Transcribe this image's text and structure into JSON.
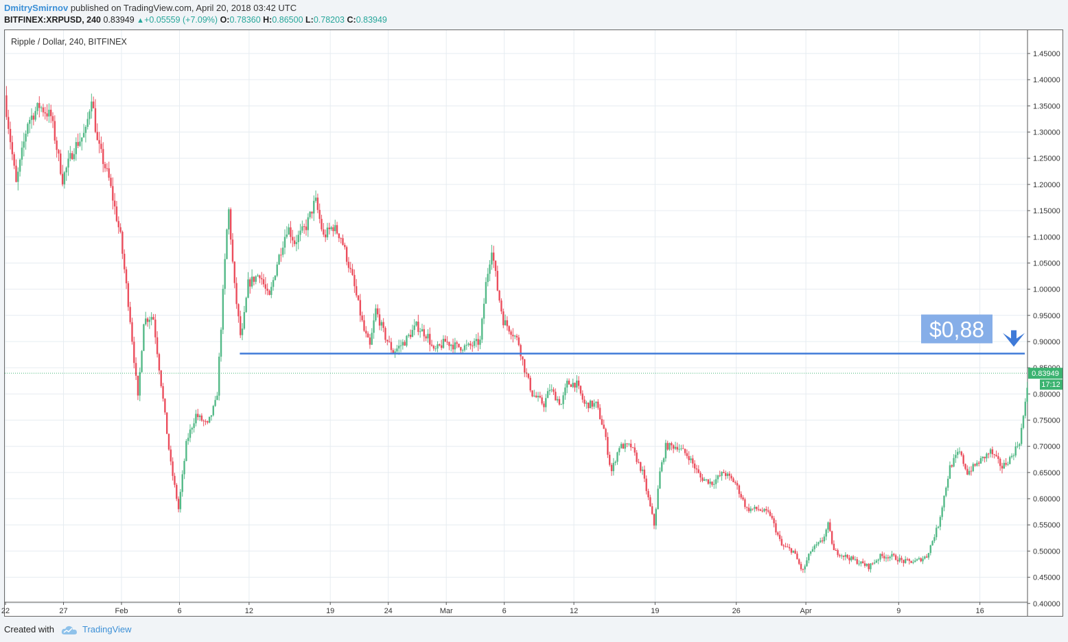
{
  "header": {
    "author": "DmitrySmirnov",
    "published_text": "published on TradingView.com, April 20, 2018 03:42 UTC",
    "symbol": "BITFINEX:XRPUSD, 240",
    "last": "0.83949",
    "arrow": "▲",
    "change": "+0.05559 (+7.09%)",
    "open_label": "O:",
    "open": "0.78360",
    "high_label": "H:",
    "high": "0.86500",
    "low_label": "L:",
    "low": "0.78203",
    "close_label": "C:",
    "close": "0.83949"
  },
  "pane_title": "Ripple / Dollar, 240, BITFINEX",
  "footer": {
    "created_with": "Created with",
    "brand": "TradingView",
    "brand_icon": "tradingview-cloud-icon"
  },
  "colors": {
    "up": "#53b987",
    "down": "#eb4d5c",
    "level_line": "#3f7ad8",
    "label_bg": "#86aee8",
    "price_tag": "#3cb371"
  },
  "chart_data": {
    "type": "candlestick",
    "title": "Ripple / Dollar, 240, BITFINEX",
    "y_ticks": [
      "1.45000",
      "1.40000",
      "1.35000",
      "1.30000",
      "1.25000",
      "1.20000",
      "1.15000",
      "1.10000",
      "1.05000",
      "1.00000",
      "0.95000",
      "0.90000",
      "0.85000",
      "0.80000",
      "0.75000",
      "0.70000",
      "0.65000",
      "0.60000",
      "0.55000",
      "0.50000",
      "0.45000",
      "0.40000"
    ],
    "ylim": [
      0.4,
      1.45
    ],
    "x_ticks": [
      {
        "label": "22",
        "day": 0
      },
      {
        "label": "27",
        "day": 5
      },
      {
        "label": "Feb",
        "day": 10
      },
      {
        "label": "6",
        "day": 15
      },
      {
        "label": "12",
        "day": 21
      },
      {
        "label": "19",
        "day": 28
      },
      {
        "label": "24",
        "day": 33
      },
      {
        "label": "Mar",
        "day": 38
      },
      {
        "label": "6",
        "day": 43
      },
      {
        "label": "12",
        "day": 49
      },
      {
        "label": "19",
        "day": 56
      },
      {
        "label": "26",
        "day": 63
      },
      {
        "label": "Apr",
        "day": 69
      },
      {
        "label": "9",
        "day": 77
      },
      {
        "label": "16",
        "day": 84
      }
    ],
    "x_range_days": [
      0,
      88.5
    ],
    "path": [
      [
        0,
        1.37
      ],
      [
        1,
        1.2
      ],
      [
        2,
        1.32
      ],
      [
        3,
        1.35
      ],
      [
        4,
        1.33
      ],
      [
        5,
        1.21
      ],
      [
        6,
        1.27
      ],
      [
        7,
        1.3
      ],
      [
        7.5,
        1.37
      ],
      [
        8,
        1.28
      ],
      [
        9,
        1.21
      ],
      [
        10,
        1.1
      ],
      [
        10.8,
        0.95
      ],
      [
        11.5,
        0.79
      ],
      [
        12,
        0.94
      ],
      [
        12.8,
        0.95
      ],
      [
        13.5,
        0.82
      ],
      [
        14.3,
        0.67
      ],
      [
        15,
        0.58
      ],
      [
        15.7,
        0.71
      ],
      [
        16.5,
        0.76
      ],
      [
        17.5,
        0.74
      ],
      [
        18.3,
        0.79
      ],
      [
        18.8,
        0.98
      ],
      [
        19.3,
        1.16
      ],
      [
        19.8,
        1.01
      ],
      [
        20.4,
        0.9
      ],
      [
        21,
        1.01
      ],
      [
        22,
        1.03
      ],
      [
        22.8,
        0.98
      ],
      [
        23.5,
        1.05
      ],
      [
        24.4,
        1.12
      ],
      [
        25,
        1.09
      ],
      [
        26,
        1.12
      ],
      [
        26.8,
        1.17
      ],
      [
        27.5,
        1.1
      ],
      [
        28.3,
        1.12
      ],
      [
        29,
        1.1
      ],
      [
        30,
        1.02
      ],
      [
        31,
        0.92
      ],
      [
        31.5,
        0.89
      ],
      [
        32,
        0.96
      ],
      [
        32.8,
        0.91
      ],
      [
        33.5,
        0.88
      ],
      [
        34.5,
        0.9
      ],
      [
        35.5,
        0.93
      ],
      [
        36.5,
        0.91
      ],
      [
        37,
        0.88
      ],
      [
        38,
        0.9
      ],
      [
        39,
        0.89
      ],
      [
        40,
        0.89
      ],
      [
        41,
        0.9
      ],
      [
        41.5,
        1.01
      ],
      [
        42,
        1.08
      ],
      [
        42.5,
        1.0
      ],
      [
        43,
        0.94
      ],
      [
        43.7,
        0.92
      ],
      [
        44.3,
        0.9
      ],
      [
        44.8,
        0.85
      ],
      [
        45.5,
        0.8
      ],
      [
        46.5,
        0.78
      ],
      [
        47,
        0.81
      ],
      [
        48,
        0.78
      ],
      [
        48.5,
        0.82
      ],
      [
        49.3,
        0.82
      ],
      [
        50,
        0.78
      ],
      [
        51,
        0.78
      ],
      [
        51.7,
        0.73
      ],
      [
        52.3,
        0.65
      ],
      [
        53,
        0.7
      ],
      [
        54,
        0.7
      ],
      [
        55,
        0.65
      ],
      [
        56,
        0.55
      ],
      [
        56.5,
        0.65
      ],
      [
        57,
        0.7
      ],
      [
        58,
        0.7
      ],
      [
        59,
        0.68
      ],
      [
        60,
        0.64
      ],
      [
        61,
        0.63
      ],
      [
        62,
        0.65
      ],
      [
        63,
        0.63
      ],
      [
        64,
        0.58
      ],
      [
        65,
        0.58
      ],
      [
        66,
        0.57
      ],
      [
        67,
        0.51
      ],
      [
        68,
        0.5
      ],
      [
        68.8,
        0.46
      ],
      [
        69.5,
        0.5
      ],
      [
        70.5,
        0.52
      ],
      [
        71,
        0.55
      ],
      [
        71.5,
        0.5
      ],
      [
        72.5,
        0.49
      ],
      [
        73.5,
        0.48
      ],
      [
        74.5,
        0.47
      ],
      [
        75.5,
        0.49
      ],
      [
        76.5,
        0.49
      ],
      [
        77.5,
        0.48
      ],
      [
        78.5,
        0.48
      ],
      [
        79.5,
        0.49
      ],
      [
        80.5,
        0.55
      ],
      [
        81.5,
        0.66
      ],
      [
        82.3,
        0.69
      ],
      [
        83,
        0.65
      ],
      [
        84,
        0.67
      ],
      [
        85,
        0.69
      ],
      [
        86,
        0.66
      ],
      [
        86.8,
        0.68
      ],
      [
        87.5,
        0.71
      ],
      [
        88,
        0.78
      ],
      [
        88.3,
        0.84
      ]
    ],
    "annotations": [
      {
        "type": "horizontal_line",
        "value": 0.877,
        "from_day": 20.2,
        "label": "$0,88"
      },
      {
        "type": "current_price",
        "value": 0.83949,
        "label": "0.83949",
        "countdown": "17:12"
      }
    ]
  }
}
